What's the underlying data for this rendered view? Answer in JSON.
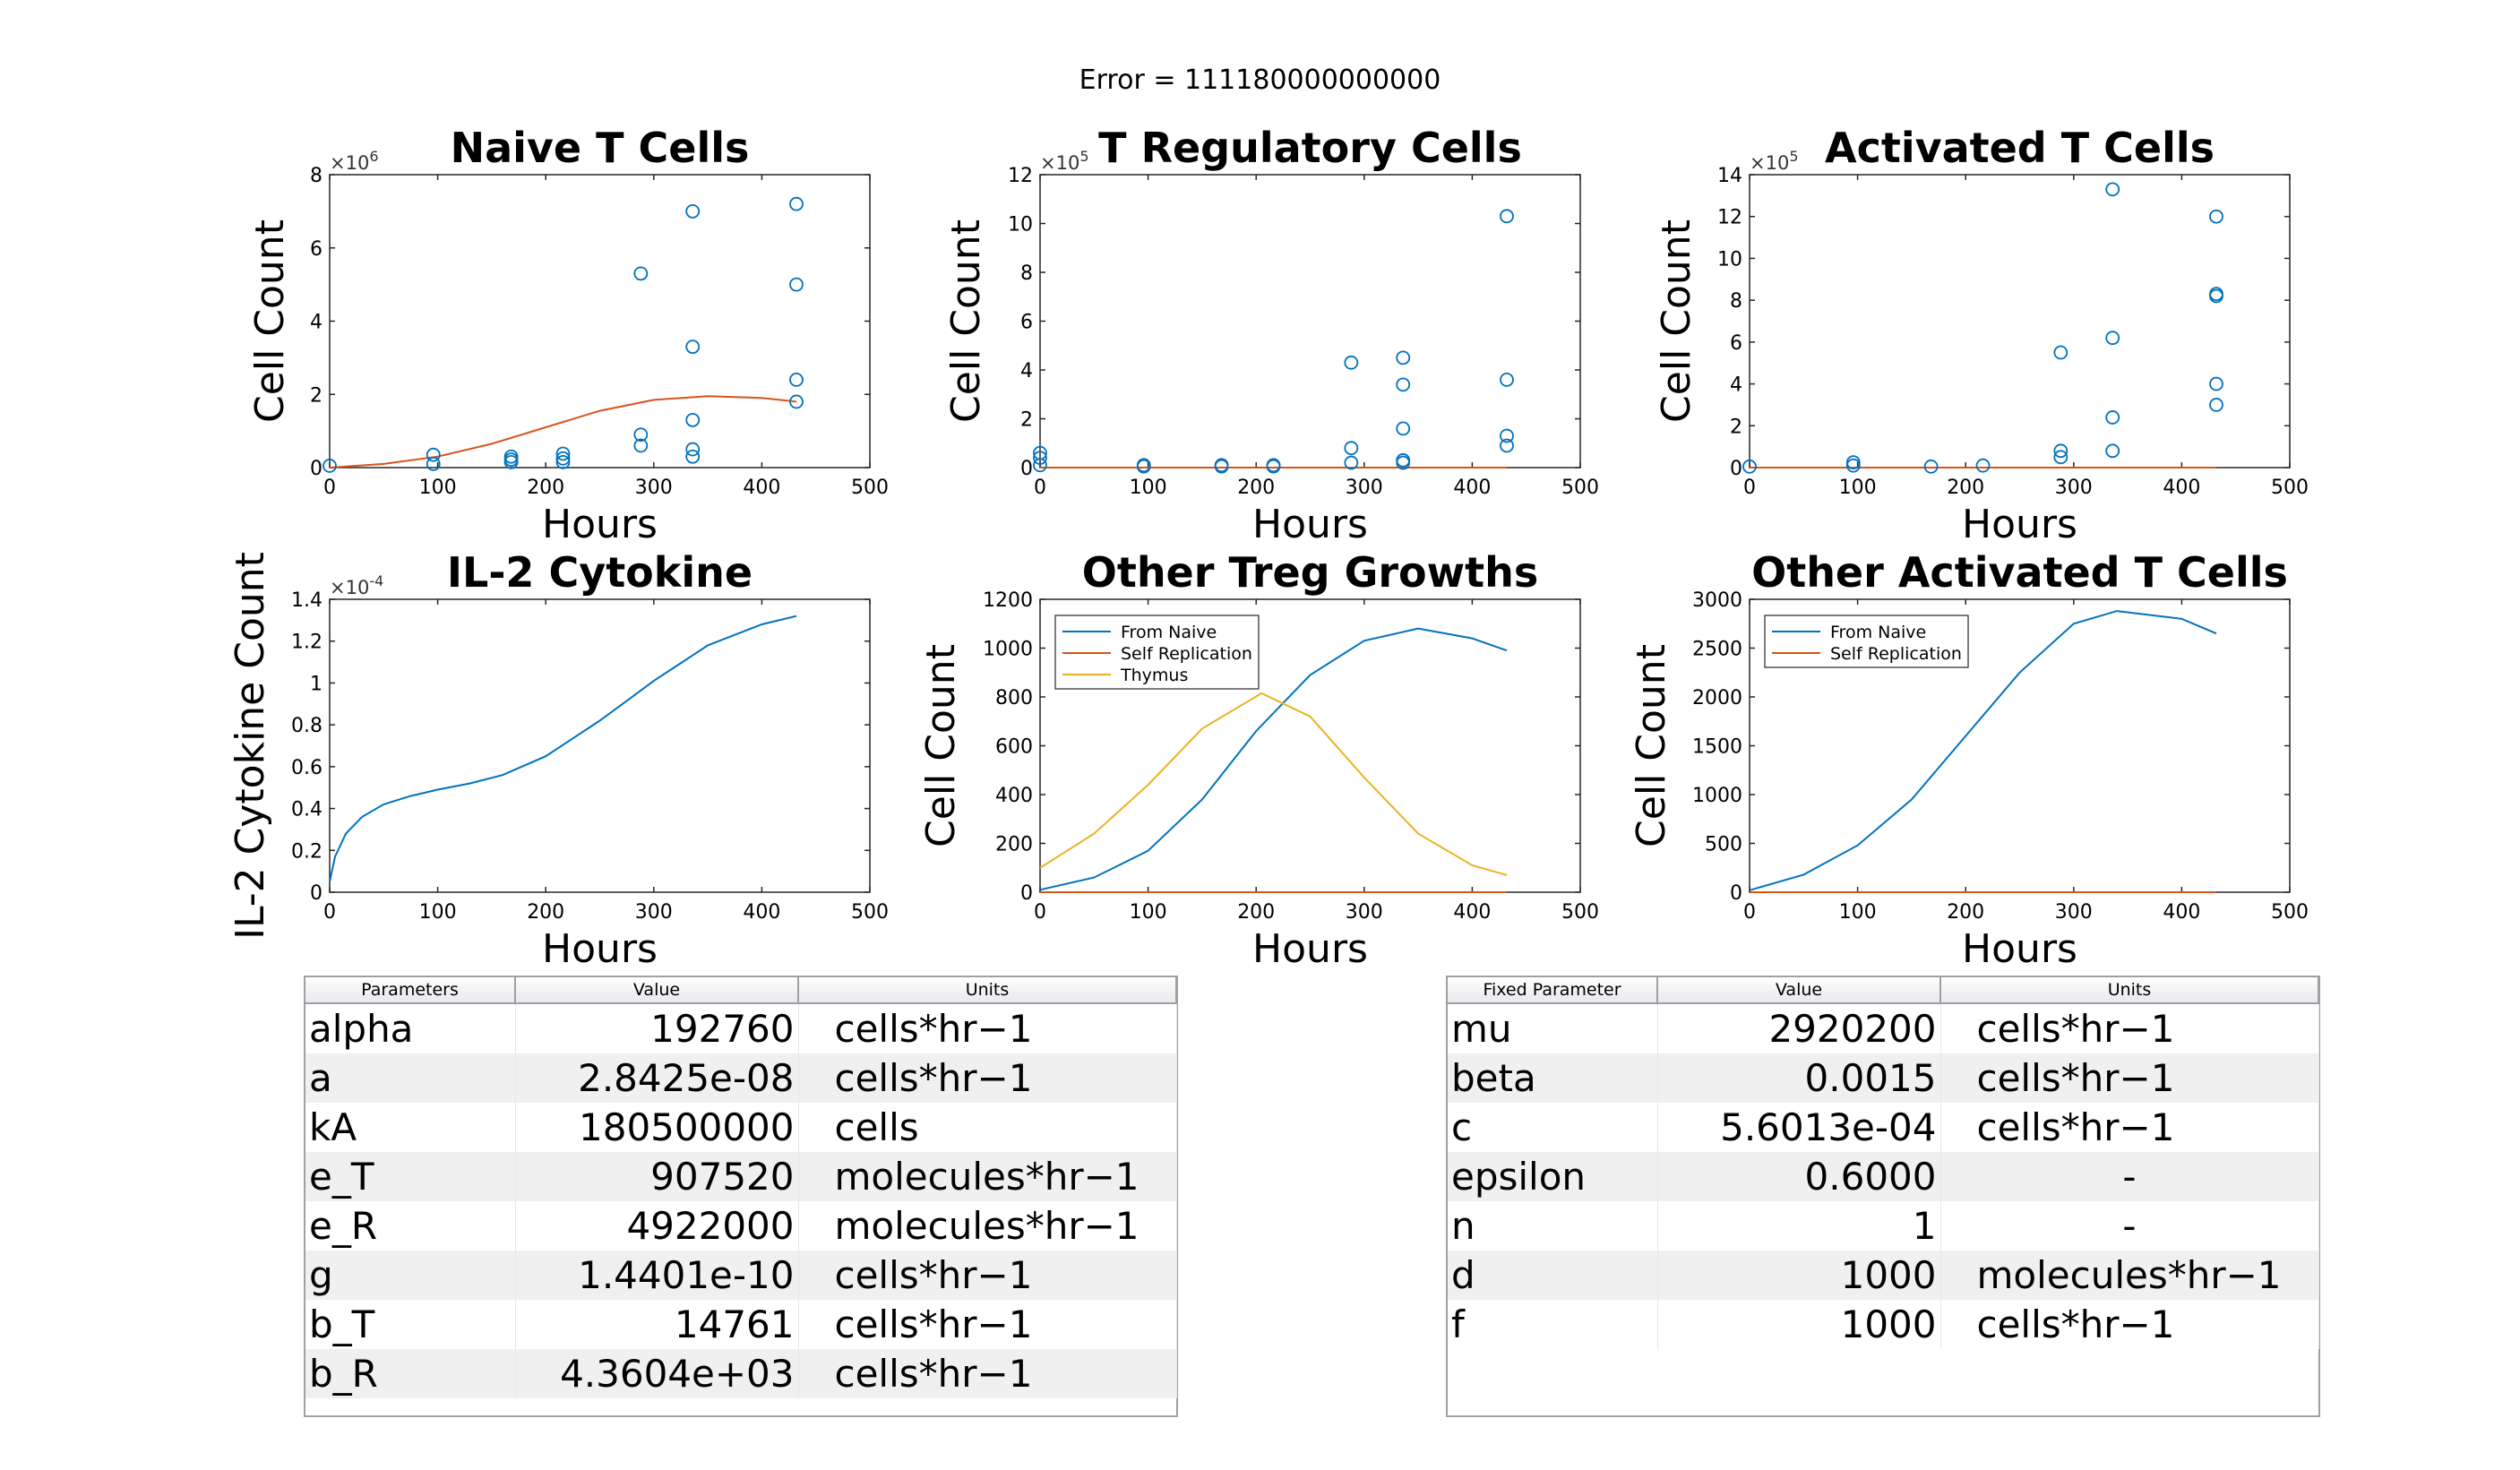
{
  "error_title": "Error = 111180000000000",
  "colors": {
    "blue": "#0072BD",
    "orange": "#D95319",
    "yellow": "#EDB120"
  },
  "chart_data": [
    {
      "type": "scatter",
      "title": "Naive T Cells",
      "xlabel": "Hours",
      "ylabel": "Cell Count",
      "xlim": [
        0,
        500
      ],
      "ylim": [
        0,
        8
      ],
      "xticks": [
        0,
        100,
        200,
        300,
        400,
        500
      ],
      "yticks": [
        0,
        2,
        4,
        6,
        8
      ],
      "exponent": "6",
      "grid": false,
      "scatter": {
        "x": [
          0,
          96,
          96,
          168,
          168,
          168,
          216,
          216,
          216,
          288,
          288,
          288,
          336,
          336,
          336,
          336,
          336,
          432,
          432,
          432,
          432
        ],
        "y": [
          0.05,
          0.35,
          0.1,
          0.3,
          0.22,
          0.15,
          0.38,
          0.25,
          0.15,
          5.3,
          0.9,
          0.6,
          7.0,
          3.3,
          1.3,
          0.5,
          0.3,
          7.2,
          5.0,
          2.4,
          1.8
        ]
      },
      "series": [
        {
          "x": [
            0,
            50,
            100,
            150,
            200,
            250,
            300,
            350,
            400,
            432
          ],
          "y": [
            0,
            0.1,
            0.3,
            0.65,
            1.1,
            1.55,
            1.85,
            1.95,
            1.9,
            1.8
          ]
        }
      ]
    },
    {
      "type": "scatter",
      "title": "T Regulatory Cells",
      "xlabel": "Hours",
      "ylabel": "Cell Count",
      "xlim": [
        0,
        500
      ],
      "ylim": [
        0,
        12
      ],
      "xticks": [
        0,
        100,
        200,
        300,
        400,
        500
      ],
      "yticks": [
        0,
        2,
        4,
        6,
        8,
        10,
        12
      ],
      "exponent": "5",
      "grid": false,
      "scatter": {
        "x": [
          0,
          0,
          0,
          96,
          96,
          168,
          168,
          216,
          216,
          288,
          288,
          288,
          336,
          336,
          336,
          336,
          336,
          432,
          432,
          432,
          432
        ],
        "y": [
          0.6,
          0.4,
          0.1,
          0.1,
          0.05,
          0.1,
          0.05,
          0.1,
          0.05,
          4.3,
          0.8,
          0.2,
          4.5,
          3.4,
          1.6,
          0.3,
          0.2,
          10.3,
          3.6,
          1.3,
          0.9
        ]
      },
      "series": [
        {
          "x": [
            0,
            432
          ],
          "y": [
            0,
            0
          ]
        }
      ]
    },
    {
      "type": "scatter",
      "title": "Activated T Cells",
      "xlabel": "Hours",
      "ylabel": "Cell Count",
      "xlim": [
        0,
        500
      ],
      "ylim": [
        0,
        14
      ],
      "xticks": [
        0,
        100,
        200,
        300,
        400,
        500
      ],
      "yticks": [
        0,
        2,
        4,
        6,
        8,
        10,
        12,
        14
      ],
      "exponent": "5",
      "grid": false,
      "scatter": {
        "x": [
          0,
          96,
          96,
          168,
          216,
          288,
          288,
          288,
          336,
          336,
          336,
          336,
          432,
          432,
          432,
          432,
          432
        ],
        "y": [
          0.05,
          0.25,
          0.1,
          0.05,
          0.1,
          5.5,
          0.8,
          0.5,
          13.3,
          6.2,
          2.4,
          0.8,
          12.0,
          8.3,
          8.2,
          4.0,
          3.0
        ]
      },
      "series": [
        {
          "x": [
            0,
            432
          ],
          "y": [
            0,
            0
          ]
        }
      ]
    },
    {
      "type": "line",
      "title": "IL-2 Cytokine",
      "xlabel": "Hours",
      "ylabel": "IL-2 Cytokine Count",
      "xlim": [
        0,
        500
      ],
      "ylim": [
        0,
        1.4
      ],
      "xticks": [
        0,
        100,
        200,
        300,
        400,
        500
      ],
      "yticks": [
        0,
        0.2,
        0.4,
        0.6,
        0.8,
        1,
        1.2,
        1.4
      ],
      "exponent": "-4",
      "grid": false,
      "series": [
        {
          "x": [
            0,
            5,
            15,
            30,
            50,
            75,
            100,
            130,
            160,
            200,
            250,
            300,
            350,
            400,
            432
          ],
          "y": [
            0.05,
            0.17,
            0.28,
            0.36,
            0.42,
            0.46,
            0.49,
            0.52,
            0.56,
            0.65,
            0.82,
            1.01,
            1.18,
            1.28,
            1.32
          ]
        }
      ]
    },
    {
      "type": "line",
      "title": "Other Treg Growths",
      "xlabel": "Hours",
      "ylabel": "Cell Count",
      "xlim": [
        0,
        500
      ],
      "ylim": [
        0,
        1200
      ],
      "xticks": [
        0,
        100,
        200,
        300,
        400,
        500
      ],
      "yticks": [
        0,
        200,
        400,
        600,
        800,
        1000,
        1200
      ],
      "grid": false,
      "legend": "top-left",
      "series": [
        {
          "name": "From Naive",
          "x": [
            0,
            50,
            100,
            150,
            200,
            250,
            300,
            350,
            400,
            432
          ],
          "y": [
            10,
            60,
            170,
            380,
            660,
            890,
            1030,
            1080,
            1040,
            990
          ]
        },
        {
          "name": "Self Replication",
          "x": [
            0,
            432
          ],
          "y": [
            0,
            0
          ]
        },
        {
          "name": "Thymus",
          "x": [
            0,
            50,
            100,
            150,
            205,
            250,
            300,
            350,
            400,
            432
          ],
          "y": [
            100,
            240,
            440,
            670,
            815,
            720,
            470,
            240,
            110,
            70
          ]
        }
      ]
    },
    {
      "type": "line",
      "title": "Other Activated T Cells",
      "xlabel": "Hours",
      "ylabel": "Cell Count",
      "xlim": [
        0,
        500
      ],
      "ylim": [
        0,
        3000
      ],
      "xticks": [
        0,
        100,
        200,
        300,
        400,
        500
      ],
      "yticks": [
        0,
        500,
        1000,
        1500,
        2000,
        2500,
        3000
      ],
      "grid": false,
      "legend": "top-left",
      "series": [
        {
          "name": "From Naive",
          "x": [
            0,
            50,
            100,
            150,
            200,
            250,
            300,
            340,
            400,
            432
          ],
          "y": [
            20,
            180,
            480,
            950,
            1600,
            2250,
            2750,
            2880,
            2800,
            2650
          ]
        },
        {
          "name": "Self Replication",
          "x": [
            0,
            432
          ],
          "y": [
            0,
            0
          ]
        }
      ]
    }
  ],
  "tables": {
    "parameters": {
      "headers": [
        "Parameters",
        "Value",
        "Units"
      ],
      "rows": [
        [
          "alpha",
          "192760",
          "cells*hr−1"
        ],
        [
          "a",
          "2.8425e-08",
          "cells*hr−1"
        ],
        [
          "kA",
          "180500000",
          "cells"
        ],
        [
          "e_T",
          "907520",
          "molecules*hr−1"
        ],
        [
          "e_R",
          "4922000",
          "molecules*hr−1"
        ],
        [
          "g",
          "1.4401e-10",
          "cells*hr−1"
        ],
        [
          "b_T",
          "14761",
          "cells*hr−1"
        ],
        [
          "b_R",
          "4.3604e+03",
          "cells*hr−1"
        ]
      ]
    },
    "fixed": {
      "headers": [
        "Fixed Parameter",
        "Value",
        "Units"
      ],
      "rows": [
        [
          "mu",
          "2920200",
          "cells*hr−1"
        ],
        [
          "beta",
          "0.0015",
          "cells*hr−1"
        ],
        [
          "c",
          "5.6013e-04",
          "cells*hr−1"
        ],
        [
          "epsilon",
          "0.6000",
          "-"
        ],
        [
          "n",
          "1",
          "-"
        ],
        [
          "d",
          "1000",
          "molecules*hr−1"
        ],
        [
          "f",
          "1000",
          "cells*hr−1"
        ]
      ]
    }
  }
}
